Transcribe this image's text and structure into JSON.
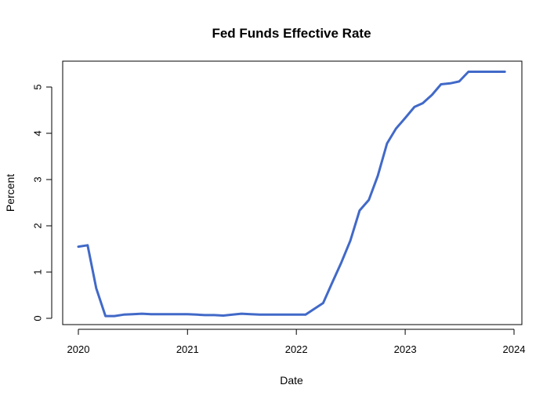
{
  "chart_data": {
    "type": "line",
    "title": "Fed Funds Effective Rate",
    "xlabel": "Date",
    "ylabel": "Percent",
    "x_ticks": [
      "2020",
      "2021",
      "2022",
      "2023",
      "2024"
    ],
    "y_ticks": [
      "0",
      "1",
      "2",
      "3",
      "4",
      "5"
    ],
    "xlim": [
      "2019-12-01",
      "2024-01-01"
    ],
    "ylim": [
      0,
      5.5
    ],
    "grid": false,
    "legend": "none",
    "colors": {
      "series": "#4169C8",
      "axis": "#000000"
    },
    "series": [
      {
        "x": [
          "2020-01-01",
          "2020-02-01",
          "2020-03-01",
          "2020-04-01",
          "2020-05-01",
          "2020-06-01",
          "2020-07-01",
          "2020-08-01",
          "2020-09-01",
          "2020-10-01",
          "2020-11-01",
          "2020-12-01",
          "2021-01-01",
          "2021-02-01",
          "2021-03-01",
          "2021-04-01",
          "2021-05-01",
          "2021-06-01",
          "2021-07-01",
          "2021-08-01",
          "2021-09-01",
          "2021-10-01",
          "2021-11-01",
          "2021-12-01",
          "2022-01-01",
          "2022-02-01",
          "2022-03-01",
          "2022-04-01",
          "2022-05-01",
          "2022-06-01",
          "2022-07-01",
          "2022-08-01",
          "2022-09-01",
          "2022-10-01",
          "2022-11-01",
          "2022-12-01",
          "2023-01-01",
          "2023-02-01",
          "2023-03-01",
          "2023-04-01",
          "2023-05-01",
          "2023-06-01",
          "2023-07-01",
          "2023-08-01",
          "2023-09-01",
          "2023-10-01",
          "2023-11-01",
          "2023-12-01"
        ],
        "y": [
          1.55,
          1.58,
          0.65,
          0.05,
          0.05,
          0.08,
          0.09,
          0.1,
          0.09,
          0.09,
          0.09,
          0.09,
          0.09,
          0.08,
          0.07,
          0.07,
          0.06,
          0.08,
          0.1,
          0.09,
          0.08,
          0.08,
          0.08,
          0.08,
          0.08,
          0.08,
          0.2,
          0.33,
          0.77,
          1.21,
          1.68,
          2.33,
          2.56,
          3.08,
          3.78,
          4.1,
          4.33,
          4.57,
          4.65,
          4.83,
          5.06,
          5.08,
          5.12,
          5.33,
          5.33,
          5.33,
          5.33,
          5.33
        ]
      }
    ]
  }
}
